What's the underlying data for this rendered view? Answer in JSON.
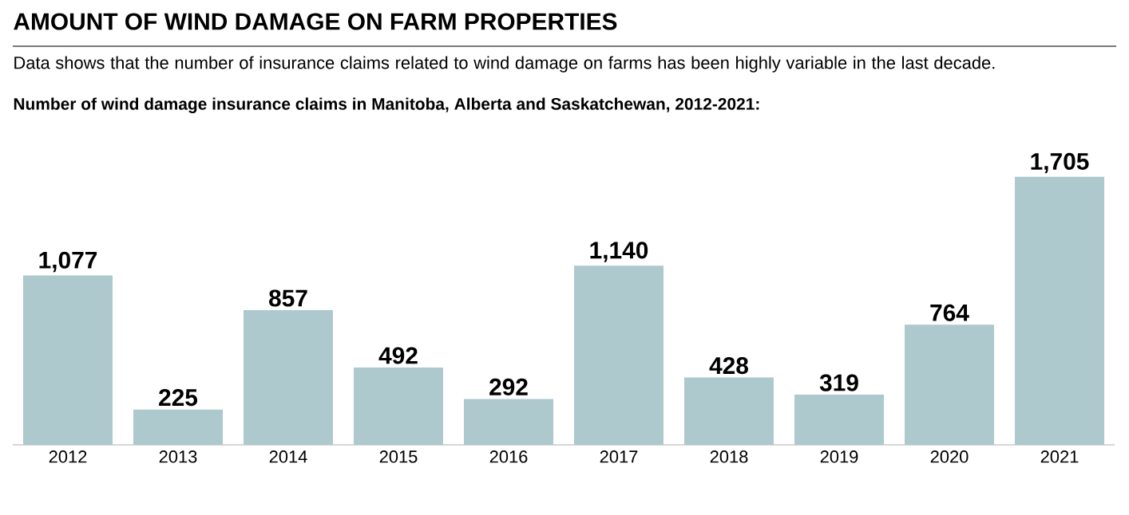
{
  "chart_data": {
    "type": "bar",
    "title": "AMOUNT OF WIND DAMAGE ON FARM PROPERTIES",
    "subtitle": "Data shows that the number of insurance claims related to wind damage on farms has been highly variable in the last decade.",
    "annotations": [
      "Number of wind damage insurance claims in Manitoba, Alberta and Saskatchewan, 2012-2021:"
    ],
    "categories": [
      "2012",
      "2013",
      "2014",
      "2015",
      "2016",
      "2017",
      "2018",
      "2019",
      "2020",
      "2021"
    ],
    "values": [
      1077,
      225,
      857,
      492,
      292,
      1140,
      428,
      319,
      764,
      1705
    ],
    "value_labels": [
      "1,077",
      "225",
      "857",
      "492",
      "292",
      "1,140",
      "428",
      "319",
      "764",
      "1,705"
    ],
    "color": "#adc9cd"
  }
}
